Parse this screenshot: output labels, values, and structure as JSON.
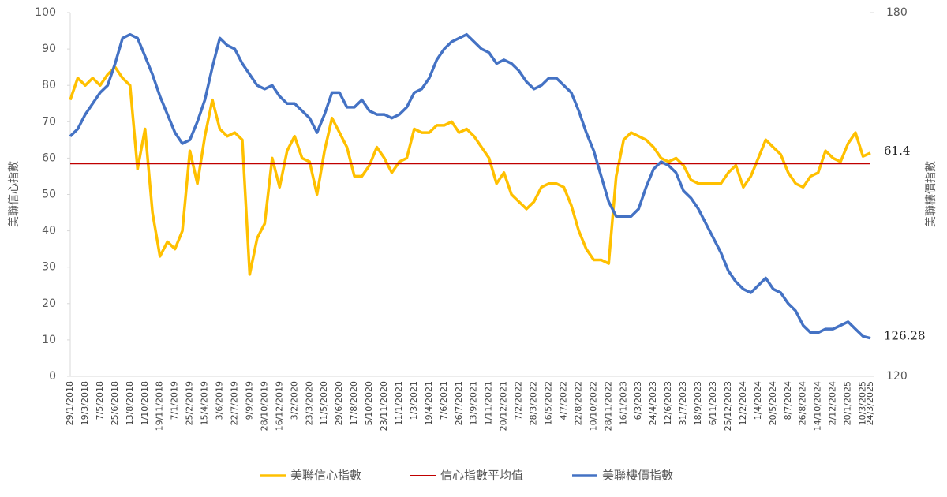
{
  "chart_data": {
    "type": "line",
    "y_label": "美聯信心指數",
    "y2_label": "美聯樓價指數",
    "categories": [
      "29/1/2018",
      null,
      "19/3/2018",
      null,
      "7/5/2018",
      null,
      "25/6/2018",
      null,
      "13/8/2018",
      null,
      "1/10/2018",
      null,
      "19/11/2018",
      null,
      "7/1/2019",
      null,
      "25/2/2019",
      null,
      "15/4/2019",
      null,
      "3/6/2019",
      null,
      "22/7/2019",
      null,
      "9/9/2019",
      null,
      "28/10/2019",
      null,
      "16/12/2019",
      null,
      "3/2/2020",
      null,
      "23/3/2020",
      null,
      "11/5/2020",
      null,
      "29/6/2020",
      null,
      "17/8/2020",
      null,
      "5/10/2020",
      null,
      "23/11/2020",
      null,
      "11/1/2021",
      null,
      "1/3/2021",
      null,
      "19/4/2021",
      null,
      "7/6/2021",
      null,
      "26/7/2021",
      null,
      "13/9/2021",
      null,
      "1/11/2021",
      null,
      "20/12/2021",
      null,
      "7/2/2022",
      null,
      "28/3/2022",
      null,
      "16/5/2022",
      null,
      "4/7/2022",
      null,
      "22/8/2022",
      null,
      "10/10/2022",
      null,
      "28/11/2022",
      null,
      "16/1/2023",
      null,
      "6/3/2023",
      null,
      "24/4/2023",
      null,
      "12/6/2023",
      null,
      "31/7/2023",
      null,
      "18/9/2023",
      null,
      "6/11/2023",
      null,
      "25/12/2023",
      null,
      "12/2/2024",
      null,
      "1/4/2024",
      null,
      "20/5/2024",
      null,
      "8/7/2024",
      null,
      "26/8/2024",
      null,
      "14/10/2024",
      null,
      "2/12/2024",
      null,
      "20/1/2025",
      null,
      "10/3/2025",
      "24/3/2025"
    ],
    "series": [
      {
        "name": "美聯信心指數",
        "color": "#FFC000",
        "axis": "y",
        "end_label": true,
        "values": [
          76,
          82,
          80,
          82,
          80,
          83,
          85,
          82,
          80,
          57,
          68,
          45,
          33,
          37,
          35,
          40,
          62,
          53,
          66,
          76,
          68,
          66,
          67,
          65,
          28,
          38,
          42,
          60,
          52,
          62,
          66,
          60,
          59,
          50,
          62,
          71,
          67,
          63,
          55,
          55,
          58,
          63,
          60,
          56,
          59,
          60,
          68,
          67,
          67,
          69,
          69,
          70,
          67,
          68,
          66,
          63,
          60,
          53,
          56,
          50,
          48,
          46,
          48,
          52,
          53,
          53,
          52,
          47,
          40,
          35,
          32,
          32,
          31,
          55,
          65,
          67,
          66,
          65,
          63,
          60,
          59,
          60,
          58,
          54,
          53,
          53,
          53,
          53,
          56,
          58,
          52,
          55,
          60,
          65,
          63,
          61,
          56,
          53,
          52,
          55,
          56,
          62,
          60,
          59,
          64,
          67,
          60.5,
          61.4
        ]
      },
      {
        "name": "信心指數平均值",
        "color": "#C00000",
        "axis": "y",
        "end_label": false,
        "values": [
          58.5,
          58.5,
          58.5,
          58.5,
          58.5,
          58.5,
          58.5,
          58.5,
          58.5,
          58.5,
          58.5,
          58.5,
          58.5,
          58.5,
          58.5,
          58.5,
          58.5,
          58.5,
          58.5,
          58.5,
          58.5,
          58.5,
          58.5,
          58.5,
          58.5,
          58.5,
          58.5,
          58.5,
          58.5,
          58.5,
          58.5,
          58.5,
          58.5,
          58.5,
          58.5,
          58.5,
          58.5,
          58.5,
          58.5,
          58.5,
          58.5,
          58.5,
          58.5,
          58.5,
          58.5,
          58.5,
          58.5,
          58.5,
          58.5,
          58.5,
          58.5,
          58.5,
          58.5,
          58.5,
          58.5,
          58.5,
          58.5,
          58.5,
          58.5,
          58.5,
          58.5,
          58.5,
          58.5,
          58.5,
          58.5,
          58.5,
          58.5,
          58.5,
          58.5,
          58.5,
          58.5,
          58.5,
          58.5,
          58.5,
          58.5,
          58.5,
          58.5,
          58.5,
          58.5,
          58.5,
          58.5,
          58.5,
          58.5,
          58.5,
          58.5,
          58.5,
          58.5,
          58.5,
          58.5,
          58.5,
          58.5,
          58.5,
          58.5,
          58.5,
          58.5,
          58.5,
          58.5,
          58.5,
          58.5,
          58.5,
          58.5,
          58.5,
          58.5,
          58.5,
          58.5,
          58.5,
          58.5,
          58.5
        ]
      },
      {
        "name": "美聯樓價指數",
        "color": "#4472C4",
        "axis": "y2",
        "end_label": true,
        "values": [
          159.6,
          160.8,
          163.2,
          165,
          166.8,
          168,
          171.6,
          175.8,
          176.4,
          175.8,
          172.8,
          169.8,
          166.2,
          163.2,
          160.2,
          158.4,
          159,
          162,
          165.6,
          171,
          175.8,
          174.6,
          174,
          171.6,
          169.8,
          168,
          167.4,
          168,
          166.2,
          165,
          165,
          163.8,
          162.6,
          160.2,
          163.2,
          166.8,
          166.8,
          164.4,
          164.4,
          165.6,
          163.8,
          163.2,
          163.2,
          162.6,
          163.2,
          164.4,
          166.8,
          167.4,
          169.2,
          172.2,
          174,
          175.2,
          175.8,
          176.4,
          175.2,
          174,
          173.4,
          171.6,
          172.2,
          171.6,
          170.4,
          168.6,
          167.4,
          168,
          169.2,
          169.2,
          168,
          166.8,
          163.8,
          160.2,
          157.2,
          153,
          148.8,
          146.4,
          146.4,
          146.4,
          147.6,
          151.2,
          154.2,
          155.4,
          154.8,
          153.6,
          150.6,
          149.4,
          147.6,
          145.2,
          142.8,
          140.4,
          137.4,
          135.6,
          134.4,
          133.8,
          135,
          136.2,
          134.4,
          133.8,
          132,
          130.8,
          128.4,
          127.2,
          127.2,
          127.8,
          127.8,
          128.4,
          129,
          127.8,
          126.6,
          126.28
        ]
      }
    ],
    "ylim": [
      0,
      100
    ],
    "yticks": [
      0,
      10,
      20,
      30,
      40,
      50,
      60,
      70,
      80,
      90,
      100
    ],
    "y2lim": [
      120,
      180
    ],
    "y2ticks": [
      120,
      180
    ],
    "grid": false,
    "legend": "bottom"
  }
}
